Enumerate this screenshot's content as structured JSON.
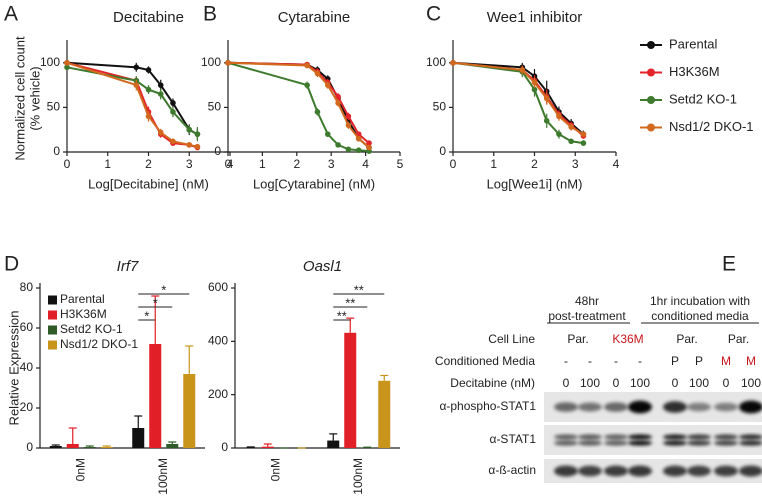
{
  "panel_labels": [
    "A",
    "B",
    "C",
    "D",
    "E"
  ],
  "chart_data": [
    {
      "type": "line",
      "title": "Decitabine",
      "x_label": "Log[Decitabine] (nM)",
      "y_label": [
        "Normalized cell count",
        "(% vehicle)"
      ],
      "x": [
        0,
        1.7,
        2.0,
        2.3,
        2.6,
        3.0,
        3.2
      ],
      "xlim": [
        0,
        4
      ],
      "xticks": [
        0,
        1,
        2,
        3,
        4
      ],
      "ylim": [
        0,
        120
      ],
      "yticks": [
        0,
        50,
        100
      ],
      "legend": "outside right",
      "series": [
        {
          "name": "Parental",
          "color": "#111111",
          "values": [
            100,
            95,
            92,
            75,
            55,
            25,
            20
          ],
          "errors": [
            3,
            5,
            4,
            6,
            5,
            6,
            6
          ]
        },
        {
          "name": "H3K36M",
          "color": "#e3242b",
          "values": [
            100,
            80,
            45,
            20,
            10,
            8,
            5
          ],
          "errors": [
            3,
            5,
            6,
            4,
            3,
            2,
            2
          ]
        },
        {
          "name": "Setd2 KO-1",
          "color": "#3e7a2e",
          "values": [
            95,
            80,
            70,
            65,
            45,
            25,
            20
          ],
          "errors": [
            3,
            5,
            5,
            6,
            6,
            5,
            8
          ]
        },
        {
          "name": "Nsd1/2 DKO-1",
          "color": "#d2691e",
          "values": [
            100,
            75,
            40,
            22,
            12,
            8,
            6
          ],
          "errors": [
            3,
            6,
            6,
            4,
            3,
            2,
            2
          ]
        }
      ]
    },
    {
      "type": "line",
      "title": "Cytarabine",
      "x_label": "Log[Cytarabine] (nM)",
      "x": [
        0,
        2.3,
        2.6,
        2.9,
        3.2,
        3.5,
        3.8,
        4.1
      ],
      "xlim": [
        0,
        5
      ],
      "xticks": [
        0,
        1,
        2,
        3,
        4,
        5
      ],
      "ylim": [
        0,
        120
      ],
      "yticks": [
        0,
        50,
        100
      ],
      "series": [
        {
          "color": "#111111",
          "values": [
            100,
            98,
            92,
            82,
            60,
            35,
            15,
            5
          ],
          "errors": [
            2,
            3,
            4,
            4,
            4,
            4,
            3,
            2
          ]
        },
        {
          "color": "#e3242b",
          "values": [
            100,
            98,
            90,
            78,
            62,
            40,
            20,
            10
          ],
          "errors": [
            2,
            3,
            4,
            4,
            4,
            4,
            3,
            2
          ]
        },
        {
          "color": "#3e7a2e",
          "values": [
            100,
            75,
            45,
            20,
            8,
            3,
            2,
            1
          ],
          "errors": [
            2,
            4,
            4,
            3,
            2,
            1,
            1,
            1
          ]
        },
        {
          "color": "#d2691e",
          "values": [
            100,
            97,
            88,
            75,
            55,
            30,
            15,
            5
          ],
          "errors": [
            2,
            3,
            4,
            4,
            4,
            4,
            3,
            2
          ]
        }
      ]
    },
    {
      "type": "line",
      "title": "Wee1 inhibitor",
      "x_label": "Log[Wee1i] (nM)",
      "x": [
        0,
        1.7,
        2.0,
        2.3,
        2.6,
        2.9,
        3.2
      ],
      "xlim": [
        0,
        4
      ],
      "xticks": [
        0,
        1,
        2,
        3,
        4
      ],
      "ylim": [
        0,
        120
      ],
      "yticks": [
        0,
        50,
        100
      ],
      "series": [
        {
          "color": "#111111",
          "values": [
            100,
            95,
            85,
            68,
            45,
            32,
            20
          ],
          "errors": [
            3,
            5,
            8,
            12,
            6,
            5,
            4
          ]
        },
        {
          "color": "#e3242b",
          "values": [
            100,
            92,
            80,
            62,
            42,
            30,
            18
          ],
          "errors": [
            3,
            5,
            6,
            8,
            5,
            4,
            3
          ]
        },
        {
          "color": "#3e7a2e",
          "values": [
            100,
            90,
            70,
            35,
            20,
            12,
            10
          ],
          "errors": [
            3,
            6,
            8,
            8,
            5,
            3,
            3
          ]
        },
        {
          "color": "#d2691e",
          "values": [
            100,
            92,
            78,
            60,
            40,
            28,
            20
          ],
          "errors": [
            3,
            5,
            6,
            7,
            5,
            4,
            3
          ]
        }
      ]
    },
    {
      "type": "bar",
      "title": "Irf7",
      "y_label": [
        "Relative Expression"
      ],
      "categories": [
        "0nM",
        "100nM"
      ],
      "ylim": [
        0,
        80
      ],
      "yticks": [
        0,
        20,
        40,
        60,
        80
      ],
      "legend": "upper left",
      "significance": [
        "*",
        "*",
        "*"
      ],
      "series": [
        {
          "name": "Parental",
          "color": "#111111",
          "values": [
            1,
            10
          ],
          "errors": [
            0.5,
            6
          ]
        },
        {
          "name": "H3K36M",
          "color": "#e01f26",
          "values": [
            2,
            52
          ],
          "errors": [
            8,
            24
          ]
        },
        {
          "name": "Setd2 KO-1",
          "color": "#2e5a28",
          "values": [
            0.5,
            2
          ],
          "errors": [
            0.5,
            1
          ]
        },
        {
          "name": "Nsd1/2 DKO-1",
          "color": "#c8941a",
          "values": [
            0.5,
            37
          ],
          "errors": [
            0.5,
            14
          ]
        }
      ]
    },
    {
      "type": "bar",
      "title": "Oasl1",
      "categories": [
        "0nM",
        "100nM"
      ],
      "ylim": [
        0,
        600
      ],
      "yticks": [
        0,
        200,
        400,
        600
      ],
      "significance": [
        "**",
        "**",
        "**"
      ],
      "series": [
        {
          "color": "#111111",
          "values": [
            2,
            28
          ],
          "errors": [
            2,
            25
          ]
        },
        {
          "color": "#e01f26",
          "values": [
            5,
            432
          ],
          "errors": [
            10,
            55
          ]
        },
        {
          "color": "#2e5a28",
          "values": [
            0,
            2
          ],
          "errors": [
            0,
            1
          ]
        },
        {
          "color": "#c8941a",
          "values": [
            0,
            252
          ],
          "errors": [
            0,
            20
          ]
        }
      ]
    }
  ],
  "blot": {
    "groups": [
      {
        "lines": [
          "48hr",
          "post-treatment"
        ]
      },
      {
        "lines": [
          "1hr incubation with",
          "conditioned media"
        ]
      }
    ],
    "rows": [
      {
        "label": "Cell Line",
        "cells": [
          "Par.",
          "K36M",
          "Par.",
          "Par."
        ],
        "cell_colors": [
          "#222222",
          "#c8161d",
          "#222222",
          "#222222"
        ]
      },
      {
        "label": "Conditioned Media",
        "cells": [
          "-",
          "-",
          "-",
          "-",
          "P",
          "P",
          "M",
          "M"
        ],
        "cell_colors": [
          "#222222",
          "#222222",
          "#222222",
          "#222222",
          "#222222",
          "#222222",
          "#c8161d",
          "#c8161d"
        ]
      },
      {
        "label": "Decitabine (nM)",
        "cells": [
          "0",
          "100",
          "0",
          "100",
          "0",
          "100",
          "0",
          "100"
        ]
      }
    ],
    "antibodies": [
      "α-phospho-STAT1",
      "α-STAT1",
      "α-ß-actin"
    ]
  }
}
